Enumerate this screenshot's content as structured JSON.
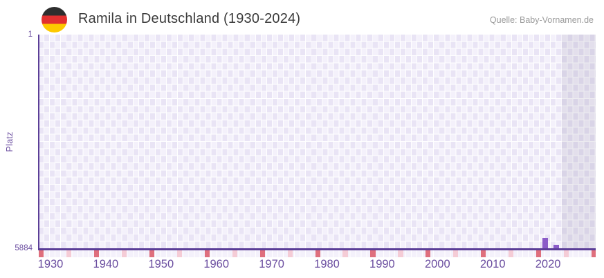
{
  "header": {
    "title": "Ramila in Deutschland (1930-2024)",
    "source": "Quelle: Baby-Vornamen.de",
    "flag": "germany-flag-icon"
  },
  "chart_data": {
    "type": "bar",
    "title": "Ramila in Deutschland (1930-2024)",
    "ylabel": "Platz",
    "xlabel": "",
    "y_axis": {
      "top_tick_label": "1",
      "bottom_tick_label": "5884",
      "min": 1,
      "max": 5884,
      "inverted": true
    },
    "x_axis": {
      "tick_labels": [
        "1930",
        "1940",
        "1950",
        "1960",
        "1970",
        "1980",
        "1990",
        "2000",
        "2010",
        "2020"
      ],
      "data_start_year": 1930,
      "data_end_year": 2024,
      "major_tick_every_years": 10,
      "minor_tick_every_years": 5
    },
    "bars": [
      {
        "year": 2019,
        "platz": 5580
      },
      {
        "year": 2021,
        "platz": 5770
      }
    ],
    "legend": null,
    "grid": "checkerboard",
    "notes": "recent years shaded region at right edge of plot",
    "colors": {
      "bar": "#8b5cc8",
      "axis": "#5b3e97",
      "major_tick": "#df6f7d",
      "minor_tick": "#f5ccd6",
      "grid_light": "#f4f1fb",
      "grid_dark": "#e9e4f5",
      "x_label": "#6b4ea0",
      "y_label": "#6b4ea0",
      "title_text": "#3b3b3b",
      "source_text": "#9a9a9a",
      "recent_overlay": "rgba(105,100,135,0.12)"
    }
  }
}
